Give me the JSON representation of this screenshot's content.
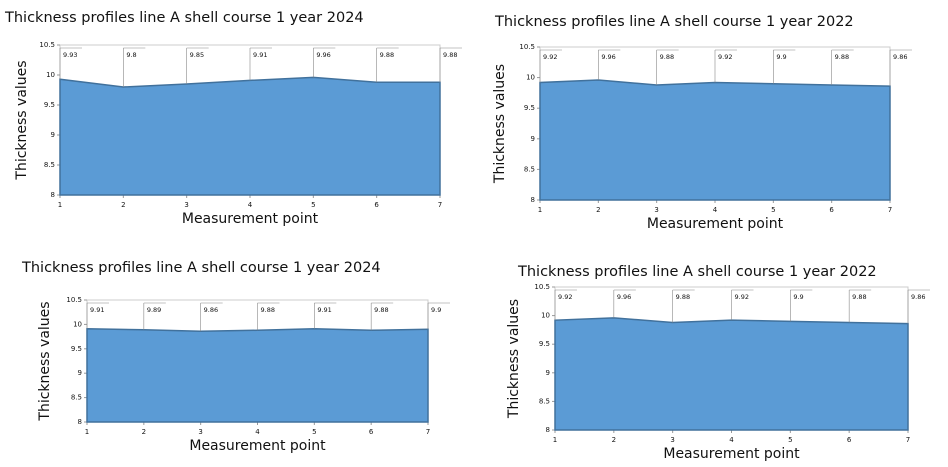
{
  "chart_data": [
    {
      "type": "area",
      "title": "Thickness profiles line A shell course 1 year 2024",
      "x_label": "Measurement point",
      "y_label": "Thickness values",
      "x": [
        1,
        2,
        3,
        4,
        5,
        6,
        7
      ],
      "values": [
        9.93,
        9.8,
        9.85,
        9.91,
        9.96,
        9.88,
        9.88
      ],
      "color": "#5b9bd5",
      "xlim": [
        1,
        7
      ],
      "xticks": [
        1,
        2,
        3,
        4,
        5,
        6,
        7
      ],
      "ylim": [
        8,
        10.5
      ],
      "yticks": [
        8,
        8.5,
        9,
        9.5,
        10,
        10.5
      ]
    },
    {
      "type": "area",
      "title": "Thickness profiles line A shell course 1 year 2022",
      "x_label": "Measurement point",
      "y_label": "Thickness values",
      "x": [
        1,
        2,
        3,
        4,
        5,
        6,
        7
      ],
      "values": [
        9.92,
        9.96,
        9.88,
        9.92,
        9.9,
        9.88,
        9.86
      ],
      "color": "#5b9bd5",
      "xlim": [
        1,
        7
      ],
      "xticks": [
        1,
        2,
        3,
        4,
        5,
        6,
        7
      ],
      "ylim": [
        8,
        10.5
      ],
      "yticks": [
        8,
        8.5,
        9,
        9.5,
        10,
        10.5
      ]
    },
    {
      "type": "area",
      "title": "Thickness profiles line A shell course 1 year 2024",
      "x_label": "Measurement point",
      "y_label": "Thickness values",
      "x": [
        1,
        2,
        3,
        4,
        5,
        6,
        7
      ],
      "values": [
        9.91,
        9.89,
        9.86,
        9.88,
        9.91,
        9.88,
        9.9
      ],
      "color": "#5b9bd5",
      "xlim": [
        1,
        7
      ],
      "xticks": [
        1,
        2,
        3,
        4,
        5,
        6,
        7
      ],
      "ylim": [
        8,
        10.5
      ],
      "yticks": [
        8,
        8.5,
        9,
        9.5,
        10,
        10.5
      ]
    },
    {
      "type": "area",
      "title": "Thickness profiles line A shell course 1 year 2022",
      "x_label": "Measurement point",
      "y_label": "Thickness values",
      "x": [
        1,
        2,
        3,
        4,
        5,
        6,
        7
      ],
      "values": [
        9.92,
        9.96,
        9.88,
        9.92,
        9.9,
        9.88,
        9.86
      ],
      "color": "#5b9bd5",
      "xlim": [
        1,
        7
      ],
      "xticks": [
        1,
        2,
        3,
        4,
        5,
        6,
        7
      ],
      "ylim": [
        8,
        10.5
      ],
      "yticks": [
        8,
        8.5,
        9,
        9.5,
        10,
        10.5
      ]
    }
  ]
}
